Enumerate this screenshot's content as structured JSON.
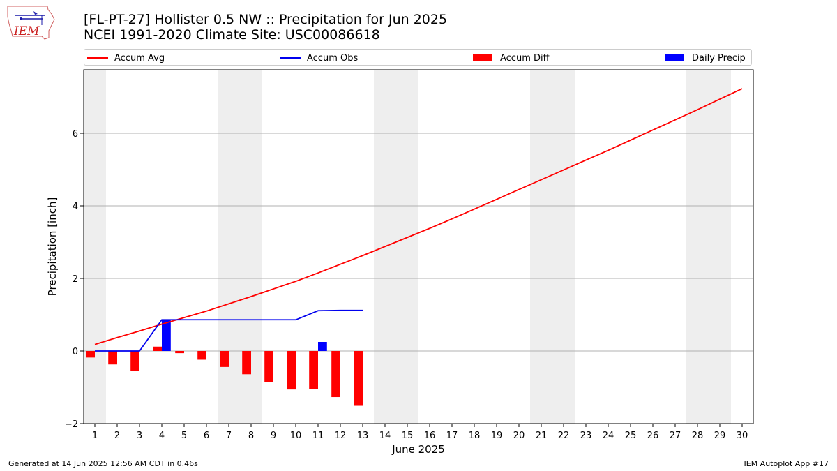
{
  "logo": {
    "text": "IEM",
    "icon": "iowa-state-outline-icon"
  },
  "title_line1": "[FL-PT-27] Hollister 0.5 NW :: Precipitation for Jun 2025",
  "title_line2": "NCEI 1991-2020 Climate Site: USC00086618",
  "legend": {
    "avg_label": "Accum Avg",
    "obs_label": "Accum Obs",
    "diff_label": "Accum Diff",
    "daily_label": "Daily Precip"
  },
  "footer": {
    "left": "Generated at 14 Jun 2025 12:56 AM CDT in 0.46s",
    "right": "IEM Autoplot App #17"
  },
  "colors": {
    "avg": "#ff0000",
    "obs": "#0000ee",
    "diff": "#ff0000",
    "daily": "#0000ff",
    "shade": "#eeeeee",
    "grid": "#b0b0b0"
  },
  "chart_data": {
    "type": "bar",
    "xlabel": "June 2025",
    "ylabel": "Precipitation [inch]",
    "ylim": [
      -2.0,
      7.75
    ],
    "xlim": [
      0.5,
      30.5
    ],
    "yticks": [
      -2,
      0,
      2,
      4,
      6
    ],
    "grid": "horizontal",
    "legend_position": "top",
    "days": [
      "1",
      "2",
      "3",
      "4",
      "5",
      "6",
      "7",
      "8",
      "9",
      "10",
      "11",
      "12",
      "13",
      "14",
      "15",
      "16",
      "17",
      "18",
      "19",
      "20",
      "21",
      "22",
      "23",
      "24",
      "25",
      "26",
      "27",
      "28",
      "29",
      "30"
    ],
    "weekend_shading": [
      [
        0.5,
        1.5
      ],
      [
        6.5,
        8.5
      ],
      [
        13.5,
        15.5
      ],
      [
        20.5,
        22.5
      ],
      [
        27.5,
        29.5
      ]
    ],
    "series": [
      {
        "name": "Accum Avg",
        "kind": "line",
        "values": [
          0.18,
          0.37,
          0.55,
          0.74,
          0.92,
          1.1,
          1.3,
          1.5,
          1.71,
          1.92,
          2.15,
          2.39,
          2.63,
          2.88,
          3.13,
          3.38,
          3.64,
          3.91,
          4.18,
          4.45,
          4.72,
          4.99,
          5.26,
          5.53,
          5.81,
          6.09,
          6.37,
          6.65,
          6.94,
          7.23
        ]
      },
      {
        "name": "Accum Obs",
        "kind": "line",
        "values": [
          0.0,
          0.0,
          0.0,
          0.86,
          0.86,
          0.86,
          0.86,
          0.86,
          0.86,
          0.86,
          1.11,
          1.12,
          1.12
        ]
      },
      {
        "name": "Accum Diff",
        "kind": "bar",
        "values": [
          -0.18,
          -0.37,
          -0.55,
          0.12,
          -0.06,
          -0.24,
          -0.44,
          -0.64,
          -0.85,
          -1.06,
          -1.04,
          -1.27,
          -1.51
        ]
      },
      {
        "name": "Daily Precip",
        "kind": "bar",
        "values": [
          0.0,
          0.0,
          0.0,
          0.86,
          0.0,
          0.0,
          0.0,
          0.0,
          0.0,
          0.0,
          0.25,
          0.0,
          0.0
        ]
      }
    ]
  }
}
